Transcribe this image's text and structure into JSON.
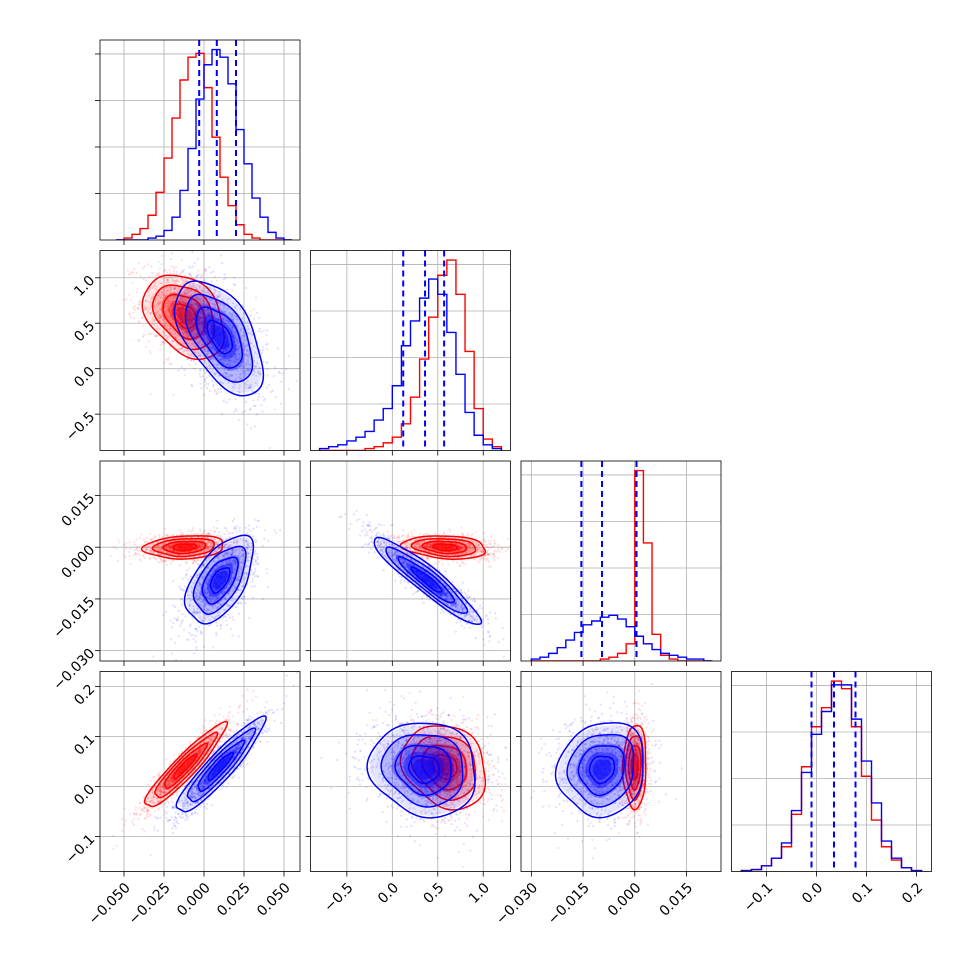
{
  "chart_data": {
    "type": "corner",
    "grid": true,
    "colors": {
      "series_a": "#0000ff",
      "series_b": "#ff0000"
    },
    "series": [
      {
        "color": "#0000ff",
        "mean": [
          0.008,
          0.35,
          -0.01,
          0.035
        ]
      },
      {
        "color": "#ff0000",
        "mean": [
          -0.012,
          0.58,
          0.0,
          0.04
        ]
      }
    ],
    "params": [
      {
        "range": [
          -0.065,
          0.06
        ],
        "ticks": [
          -0.05,
          -0.025,
          0.0,
          0.025,
          0.05
        ],
        "tick_labels": [
          "−0.050",
          "−0.025",
          "0.000",
          "0.025",
          "0.050"
        ]
      },
      {
        "range": [
          -0.9,
          1.3
        ],
        "ticks": [
          -0.5,
          0.0,
          0.5,
          1.0
        ],
        "tick_labels": [
          "−0.5",
          "0.0",
          "0.5",
          "1.0"
        ]
      },
      {
        "range": [
          -0.033,
          0.025
        ],
        "ticks": [
          -0.03,
          -0.015,
          0.0,
          0.015
        ],
        "tick_labels": [
          "−0.030",
          "−0.015",
          "0.000",
          "0.015"
        ]
      },
      {
        "range": [
          -0.17,
          0.23
        ],
        "ticks": [
          -0.1,
          0.0,
          0.1,
          0.2
        ],
        "tick_labels": [
          "−0.1",
          "0.0",
          "0.1",
          "0.2"
        ]
      }
    ],
    "quantile_lines": [
      {
        "param": 0,
        "values": [
          -0.003,
          0.008,
          0.02
        ],
        "color": "#0000ff"
      },
      {
        "param": 1,
        "values": [
          0.12,
          0.36,
          0.57
        ],
        "color": "#0000ff"
      },
      {
        "param": 2,
        "values": [
          -0.0155,
          -0.0095,
          0.0005
        ],
        "color": "#0000ff"
      },
      {
        "param": 3,
        "values": [
          -0.01,
          0.035,
          0.078
        ],
        "color": "#0000ff"
      }
    ],
    "histograms": [
      {
        "param": 0,
        "bin_edges": [
          -0.055,
          -0.05,
          -0.045,
          -0.04,
          -0.035,
          -0.03,
          -0.025,
          -0.02,
          -0.015,
          -0.01,
          -0.005,
          0.0,
          0.005,
          0.01,
          0.015,
          0.02,
          0.025,
          0.03,
          0.035,
          0.04,
          0.045,
          0.05,
          0.055
        ],
        "blue": [
          0,
          0,
          0,
          0,
          0.01,
          0.02,
          0.05,
          0.12,
          0.26,
          0.48,
          0.74,
          0.92,
          1.0,
          0.96,
          0.82,
          0.58,
          0.4,
          0.22,
          0.12,
          0.04,
          0.01,
          0
        ],
        "red": [
          0,
          0.01,
          0.03,
          0.06,
          0.13,
          0.25,
          0.43,
          0.64,
          0.84,
          0.96,
          0.98,
          0.8,
          0.54,
          0.33,
          0.18,
          0.08,
          0.03,
          0.01,
          0,
          0,
          0,
          0
        ]
      },
      {
        "param": 1,
        "bin_edges": [
          -0.8,
          -0.7,
          -0.6,
          -0.5,
          -0.4,
          -0.3,
          -0.2,
          -0.1,
          0.0,
          0.1,
          0.2,
          0.3,
          0.4,
          0.5,
          0.6,
          0.7,
          0.8,
          0.9,
          1.0,
          1.1,
          1.2
        ],
        "blue": [
          0.01,
          0.02,
          0.03,
          0.05,
          0.07,
          0.1,
          0.16,
          0.22,
          0.34,
          0.55,
          0.68,
          0.8,
          0.9,
          0.82,
          0.62,
          0.4,
          0.2,
          0.08,
          0.03,
          0.01
        ],
        "red": [
          0,
          0,
          0,
          0,
          0,
          0.01,
          0.02,
          0.04,
          0.07,
          0.14,
          0.28,
          0.48,
          0.7,
          0.92,
          1.0,
          0.82,
          0.52,
          0.22,
          0.06,
          0.02
        ]
      },
      {
        "param": 2,
        "bin_edges": [
          -0.03,
          -0.0275,
          -0.025,
          -0.0225,
          -0.02,
          -0.0175,
          -0.015,
          -0.0125,
          -0.01,
          -0.0075,
          -0.005,
          -0.0025,
          0.0,
          0.0025,
          0.005,
          0.0075,
          0.01,
          0.0125,
          0.015,
          0.0175,
          0.02,
          0.0225
        ],
        "blue": [
          0.01,
          0.02,
          0.04,
          0.07,
          0.11,
          0.15,
          0.19,
          0.21,
          0.23,
          0.24,
          0.22,
          0.18,
          0.13,
          0.09,
          0.06,
          0.04,
          0.03,
          0.02,
          0.01,
          0.01,
          0
        ],
        "red": [
          0,
          0,
          0,
          0,
          0,
          0,
          0,
          0,
          0.01,
          0.02,
          0.04,
          0.09,
          1.0,
          0.62,
          0.14,
          0.03,
          0.01,
          0,
          0,
          0,
          0
        ]
      },
      {
        "param": 3,
        "bin_edges": [
          -0.15,
          -0.13,
          -0.11,
          -0.09,
          -0.07,
          -0.05,
          -0.03,
          -0.01,
          0.01,
          0.03,
          0.05,
          0.07,
          0.09,
          0.11,
          0.13,
          0.15,
          0.17,
          0.19,
          0.21
        ],
        "blue": [
          0.005,
          0.01,
          0.03,
          0.07,
          0.15,
          0.32,
          0.52,
          0.72,
          0.84,
          0.98,
          0.98,
          0.8,
          0.58,
          0.36,
          0.16,
          0.07,
          0.02,
          0.005
        ],
        "red": [
          0.005,
          0.01,
          0.03,
          0.07,
          0.13,
          0.3,
          0.55,
          0.76,
          0.86,
          1.0,
          0.96,
          0.76,
          0.5,
          0.27,
          0.13,
          0.06,
          0.02,
          0.005
        ]
      }
    ],
    "pairs": [
      {
        "x": 0,
        "y": 1,
        "blue": {
          "mean": [
            0.01,
            0.35
          ],
          "sd": [
            0.013,
            0.3
          ],
          "rho": -0.55
        },
        "red": {
          "mean": [
            -0.012,
            0.58
          ],
          "sd": [
            0.012,
            0.22
          ],
          "rho": -0.35
        }
      },
      {
        "x": 0,
        "y": 2,
        "blue": {
          "mean": [
            0.01,
            -0.0095
          ],
          "sd": [
            0.01,
            0.006
          ],
          "rho": 0.55
        },
        "red": {
          "mean": [
            -0.012,
            0.0
          ],
          "sd": [
            0.012,
            0.0016
          ],
          "rho": 0.15
        }
      },
      {
        "x": 1,
        "y": 2,
        "blue": {
          "mean": [
            0.38,
            -0.0095
          ],
          "sd": [
            0.28,
            0.006
          ],
          "rho": -0.93
        },
        "red": {
          "mean": [
            0.58,
            0.0
          ],
          "sd": [
            0.22,
            0.0016
          ],
          "rho": -0.2
        }
      },
      {
        "x": 0,
        "y": 3,
        "blue": {
          "mean": [
            0.01,
            0.04
          ],
          "sd": [
            0.013,
            0.045
          ],
          "rho": 0.92
        },
        "red": {
          "mean": [
            -0.012,
            0.04
          ],
          "sd": [
            0.012,
            0.04
          ],
          "rho": 0.93
        }
      },
      {
        "x": 1,
        "y": 3,
        "blue": {
          "mean": [
            0.35,
            0.035
          ],
          "sd": [
            0.28,
            0.045
          ],
          "rho": -0.1
        },
        "red": {
          "mean": [
            0.58,
            0.04
          ],
          "sd": [
            0.22,
            0.04
          ],
          "rho": -0.2
        }
      },
      {
        "x": 2,
        "y": 3,
        "blue": {
          "mean": [
            -0.0095,
            0.035
          ],
          "sd": [
            0.006,
            0.045
          ],
          "rho": 0.1
        },
        "red": {
          "mean": [
            0.0,
            0.04
          ],
          "sd": [
            0.0016,
            0.04
          ],
          "rho": 0.05
        }
      }
    ]
  }
}
